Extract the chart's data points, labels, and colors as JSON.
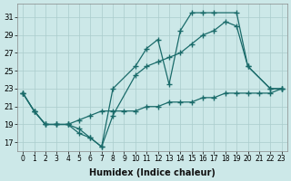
{
  "xlabel": "Humidex (Indice chaleur)",
  "bg_color": "#cce8e8",
  "grid_color": "#aacccc",
  "line_color": "#1a6b6a",
  "ylim": [
    16,
    32.5
  ],
  "xlim": [
    -0.5,
    23.5
  ],
  "yticks": [
    17,
    19,
    21,
    23,
    25,
    27,
    29,
    31
  ],
  "xticks": [
    0,
    1,
    2,
    3,
    4,
    5,
    6,
    7,
    8,
    9,
    10,
    11,
    12,
    13,
    14,
    15,
    16,
    17,
    18,
    19,
    20,
    21,
    22,
    23
  ],
  "series": [
    {
      "x": [
        0,
        1,
        2,
        3,
        4,
        5,
        6,
        7,
        8,
        10,
        11,
        12,
        13,
        14,
        15,
        16,
        17,
        19,
        20,
        22,
        23
      ],
      "y": [
        22.5,
        20.5,
        19.0,
        19.0,
        19.0,
        18.0,
        17.5,
        16.5,
        23.0,
        25.5,
        27.5,
        28.5,
        23.5,
        29.5,
        31.5,
        31.5,
        31.5,
        31.5,
        25.5,
        23.0,
        23.0
      ]
    },
    {
      "x": [
        0,
        1,
        2,
        3,
        4,
        5,
        6,
        7,
        8,
        10,
        11,
        12,
        13,
        14,
        15,
        16,
        17,
        18,
        19,
        20,
        22,
        23
      ],
      "y": [
        22.5,
        20.5,
        19.0,
        19.0,
        19.0,
        18.5,
        17.5,
        16.5,
        20.0,
        24.5,
        25.5,
        26.0,
        26.5,
        27.0,
        28.0,
        29.0,
        29.5,
        30.5,
        30.0,
        25.5,
        23.0,
        23.0
      ]
    },
    {
      "x": [
        0,
        1,
        2,
        3,
        4,
        5,
        6,
        7,
        8,
        9,
        10,
        11,
        12,
        13,
        14,
        15,
        16,
        17,
        18,
        19,
        20,
        21,
        22,
        23
      ],
      "y": [
        22.5,
        20.5,
        19.0,
        19.0,
        19.0,
        19.5,
        20.0,
        20.5,
        20.5,
        20.5,
        20.5,
        21.0,
        21.0,
        21.5,
        21.5,
        21.5,
        22.0,
        22.0,
        22.5,
        22.5,
        22.5,
        22.5,
        22.5,
        23.0
      ]
    }
  ]
}
